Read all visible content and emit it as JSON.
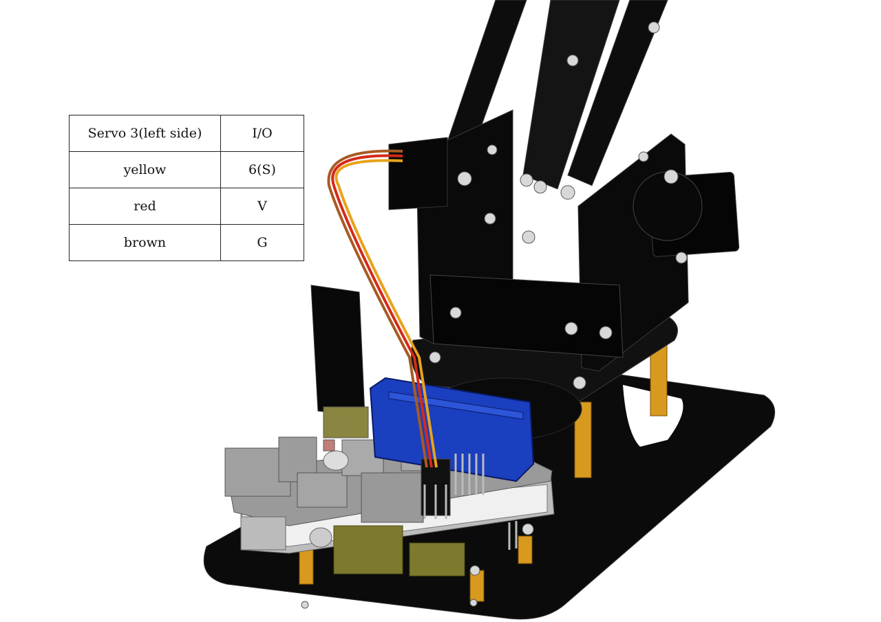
{
  "wiring_table": {
    "header": {
      "servo": "Servo 3(left side)",
      "io": "I/O"
    },
    "rows": [
      {
        "wire": "yellow",
        "pin": "6(S)"
      },
      {
        "wire": "red",
        "pin": "V"
      },
      {
        "wire": "brown",
        "pin": "G"
      }
    ]
  },
  "wire_colors": {
    "yellow": "#e8a21a",
    "red": "#d42a1a",
    "brown": "#a85a22"
  },
  "servo_color": "#1a3fbf",
  "base_color": "#0b0b0b",
  "standoff_color": "#d89a1e"
}
